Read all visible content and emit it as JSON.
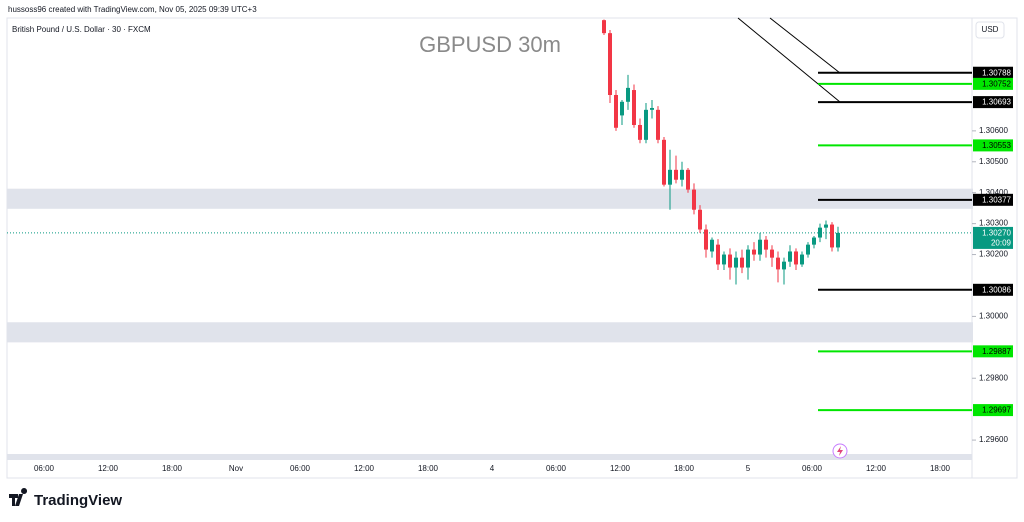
{
  "chart_data": {
    "type": "candlestick",
    "credit": "hussoss96 created with TradingView.com, Nov 05, 2025 09:39 UTC+3",
    "subtitle": "British Pound / U.S. Dollar · 30 · FXCM",
    "title": "GBPUSD 30m",
    "currency": "USD",
    "brand": "TradingView",
    "up_color": "#089981",
    "down_color": "#f23645",
    "ylim": [
      1.29555,
      1.30965
    ],
    "yticks": [
      {
        "value": 1.306,
        "label": "1.30600"
      },
      {
        "value": 1.305,
        "label": "1.30500"
      },
      {
        "value": 1.304,
        "label": "1.30400"
      },
      {
        "value": 1.303,
        "label": "1.30300"
      },
      {
        "value": 1.302,
        "label": "1.30200"
      },
      {
        "value": 1.3,
        "label": "1.30000"
      },
      {
        "value": 1.298,
        "label": "1.29800"
      },
      {
        "value": 1.296,
        "label": "1.29600"
      }
    ],
    "x_labels": [
      "06:00",
      "12:00",
      "18:00",
      "Nov",
      "06:00",
      "12:00",
      "18:00",
      "4",
      "06:00",
      "12:00",
      "18:00",
      "5",
      "06:00",
      "12:00",
      "18:00"
    ],
    "zones": [
      {
        "top": 1.30413,
        "bottom": 1.30348
      },
      {
        "top": 1.29981,
        "bottom": 1.29916
      }
    ],
    "levels": [
      {
        "value": 1.30788,
        "color": "#000000"
      },
      {
        "value": 1.30752,
        "color": "#00e600"
      },
      {
        "value": 1.30693,
        "color": "#000000"
      },
      {
        "value": 1.30553,
        "color": "#00e600"
      },
      {
        "value": 1.30377,
        "color": "#000000"
      },
      {
        "value": 1.30086,
        "color": "#000000"
      },
      {
        "value": 1.29887,
        "color": "#00e600"
      },
      {
        "value": 1.29697,
        "color": "#00e600"
      }
    ],
    "last_price": {
      "value": 1.3027,
      "label": "1.30270",
      "countdown": "20:09",
      "color": "#089981"
    },
    "open": [
      1.30958,
      1.30916,
      1.30716,
      1.3065,
      1.30694,
      1.30732,
      1.30619,
      1.30571,
      1.30668,
      1.30668,
      1.30571,
      1.30426,
      1.30474,
      1.30442,
      1.30474,
      1.3041,
      1.30345,
      1.30281,
      1.3021,
      1.30232,
      1.30168,
      1.302,
      1.30158,
      1.3019,
      1.30158,
      1.30216,
      1.302,
      1.30248,
      1.30216,
      1.3019,
      1.30152,
      1.30177,
      1.3021,
      1.30168,
      1.302,
      1.30232,
      1.30255,
      1.30287,
      1.30297,
      1.30223
    ],
    "high": [
      1.3096,
      1.30926,
      1.30732,
      1.307,
      1.30781,
      1.3075,
      1.3064,
      1.3069,
      1.307,
      1.3068,
      1.3058,
      1.30539,
      1.3052,
      1.305,
      1.3048,
      1.3043,
      1.3036,
      1.30297,
      1.30255,
      1.3025,
      1.3021,
      1.3022,
      1.3021,
      1.30216,
      1.3023,
      1.3024,
      1.3027,
      1.3026,
      1.3023,
      1.3021,
      1.3019,
      1.3023,
      1.3022,
      1.3021,
      1.3024,
      1.3026,
      1.303,
      1.3031,
      1.30305,
      1.3029
    ],
    "low": [
      1.3091,
      1.3069,
      1.306,
      1.30619,
      1.30668,
      1.3061,
      1.3056,
      1.3056,
      1.3064,
      1.3056,
      1.3042,
      1.30345,
      1.3043,
      1.3042,
      1.304,
      1.3033,
      1.3027,
      1.3019,
      1.3019,
      1.3015,
      1.3015,
      1.30119,
      1.30103,
      1.3014,
      1.30119,
      1.3018,
      1.3018,
      1.3019,
      1.3016,
      1.3011,
      1.30103,
      1.3016,
      1.3015,
      1.3016,
      1.3019,
      1.3022,
      1.3024,
      1.3025,
      1.3021,
      1.3021
    ],
    "close": [
      1.30916,
      1.30716,
      1.3061,
      1.30694,
      1.30739,
      1.30619,
      1.30571,
      1.30668,
      1.30674,
      1.30571,
      1.30426,
      1.30474,
      1.30442,
      1.30474,
      1.3041,
      1.30345,
      1.30281,
      1.30216,
      1.30248,
      1.30168,
      1.302,
      1.30158,
      1.3019,
      1.30158,
      1.30216,
      1.302,
      1.30248,
      1.30216,
      1.3019,
      1.30152,
      1.30177,
      1.3021,
      1.30168,
      1.302,
      1.30232,
      1.30255,
      1.30287,
      1.30297,
      1.30223,
      1.3027
    ]
  }
}
